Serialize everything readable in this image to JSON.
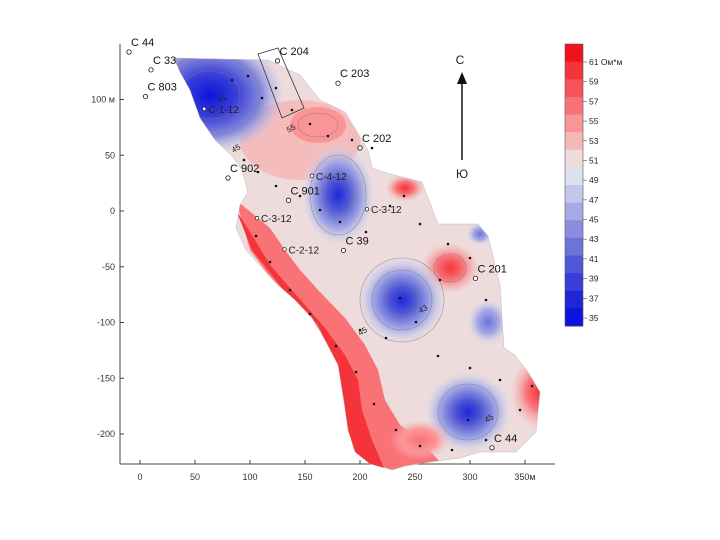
{
  "x_axis": {
    "ticks": [
      {
        "value": 0,
        "label": "0"
      },
      {
        "value": 50,
        "label": "50"
      },
      {
        "value": 100,
        "label": "100"
      },
      {
        "value": 150,
        "label": "150"
      },
      {
        "value": 200,
        "label": "200"
      },
      {
        "value": 250,
        "label": "250"
      },
      {
        "value": 300,
        "label": "300"
      },
      {
        "value": 350,
        "label": "350м"
      }
    ],
    "range": [
      0,
      370
    ]
  },
  "y_axis": {
    "ticks": [
      {
        "value": 100,
        "label": "100 м"
      },
      {
        "value": 50,
        "label": "50"
      },
      {
        "value": 0,
        "label": "0"
      },
      {
        "value": -50,
        "label": "-50"
      },
      {
        "value": -100,
        "label": "-100"
      },
      {
        "value": -150,
        "label": "-150"
      },
      {
        "value": -200,
        "label": "-200"
      }
    ],
    "range": [
      -230,
      145
    ]
  },
  "compass": {
    "north": "С",
    "south": "Ю"
  },
  "wells_major": [
    {
      "label": "С 44",
      "x": -10,
      "y": 148
    },
    {
      "label": "С 204",
      "x": 125,
      "y": 140
    },
    {
      "label": "С 33",
      "x": 10,
      "y": 132
    },
    {
      "label": "С 203",
      "x": 180,
      "y": 120
    },
    {
      "label": "С 803",
      "x": 5,
      "y": 108
    },
    {
      "label": "С 202",
      "x": 200,
      "y": 62
    },
    {
      "label": "С 902",
      "x": 80,
      "y": 35
    },
    {
      "label": "С 901",
      "x": 135,
      "y": 15
    },
    {
      "label": "С 39",
      "x": 185,
      "y": -30
    },
    {
      "label": "С 201",
      "x": 305,
      "y": -55
    },
    {
      "label": "С 44",
      "x": 320,
      "y": -207
    }
  ],
  "wells_minor": [
    {
      "label": "С-1-12",
      "x": 62,
      "y": 88
    },
    {
      "label": "С-4-12",
      "x": 160,
      "y": 28
    },
    {
      "label": "С-3-12",
      "x": 210,
      "y": -2
    },
    {
      "label": "С-3-12",
      "x": 110,
      "y": -10
    },
    {
      "label": "С-2-12",
      "x": 135,
      "y": -38
    }
  ],
  "isoline_labels": [
    {
      "text": "41",
      "x": 72,
      "y": 97
    },
    {
      "text": "45",
      "x": 85,
      "y": 52
    },
    {
      "text": "55",
      "x": 135,
      "y": 70
    },
    {
      "text": "43",
      "x": 255,
      "y": -92
    },
    {
      "text": "45",
      "x": 200,
      "y": -112
    },
    {
      "text": "45",
      "x": 315,
      "y": -190
    }
  ],
  "legend": {
    "colors": [
      "#f0131a",
      "#f4333b",
      "#f65257",
      "#f97276",
      "#fa9597",
      "#f5b8b8",
      "#eedcdc",
      "#dfe2ee",
      "#c3c7ea",
      "#a6aae4",
      "#8a8edc",
      "#6d73d8",
      "#5158d7",
      "#383ed7",
      "#1e26d8",
      "#0b14dc"
    ],
    "labels": [
      "61 Ом*м",
      "59",
      "57",
      "55",
      "53",
      "51",
      "49",
      "47",
      "45",
      "43",
      "41",
      "39",
      "37",
      "35"
    ]
  }
}
